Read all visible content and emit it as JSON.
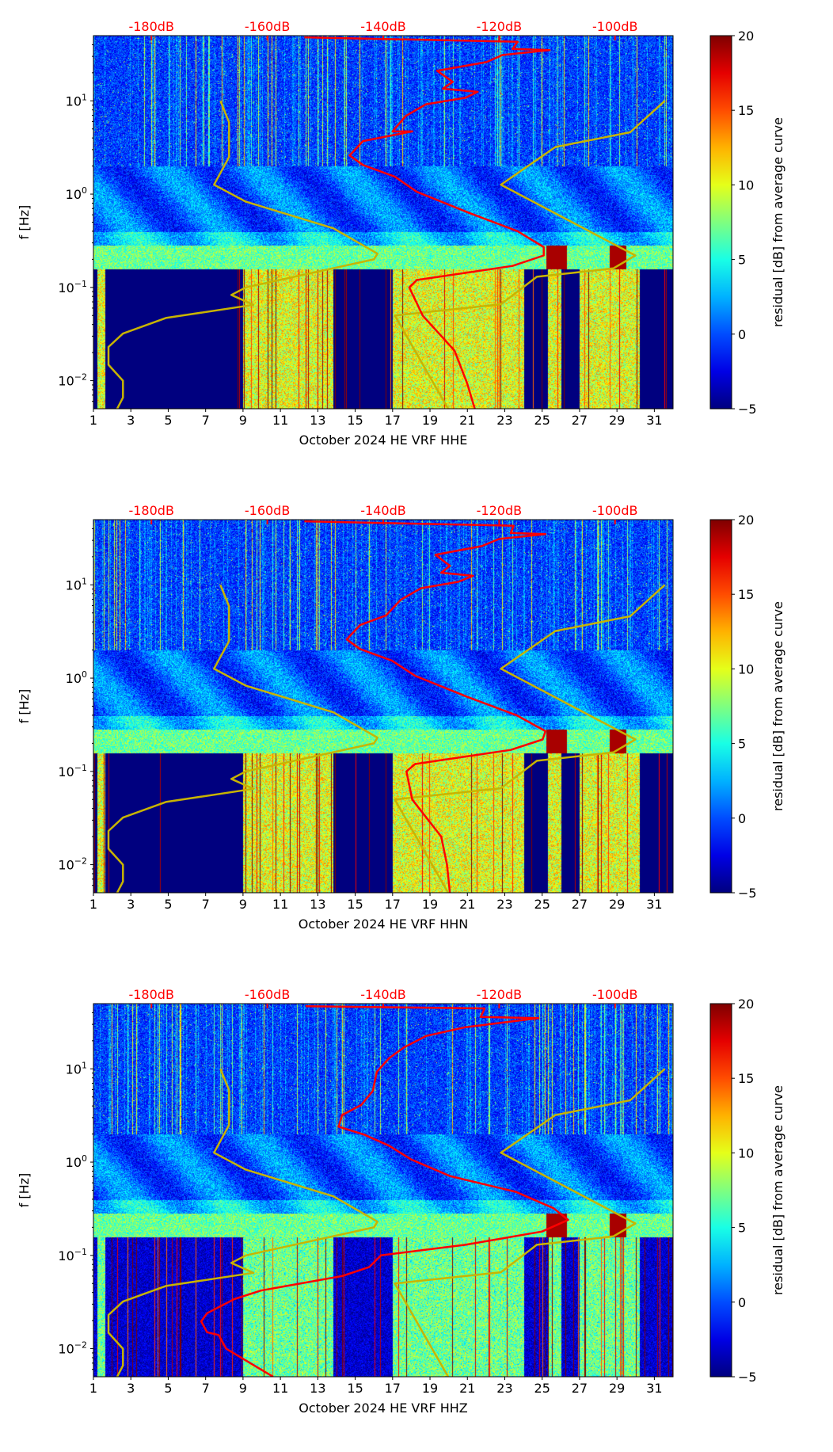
{
  "colors": {
    "psd_curve": "#ff0000",
    "noise_model": "#c8b400",
    "db_label": "#ff0000"
  },
  "colorbar": {
    "label": "residual [dB] from average curve",
    "range": [
      -5,
      20
    ],
    "ticks": [
      -5,
      0,
      5,
      10,
      15,
      20
    ],
    "colormap": "jet"
  },
  "chart_data": [
    {
      "type": "heatmap",
      "title": "",
      "xlabel": "October 2024 HE VRF  HHE",
      "ylabel": "f [Hz]",
      "xlim": [
        1,
        32
      ],
      "ylim": [
        0.005,
        50
      ],
      "yscale": "log",
      "x_ticks": [
        1,
        3,
        5,
        7,
        9,
        11,
        13,
        15,
        17,
        19,
        21,
        23,
        25,
        27,
        29,
        31
      ],
      "y_ticks": [
        {
          "value": 0.01,
          "base": "10",
          "exp": "−2"
        },
        {
          "value": 0.1,
          "base": "10",
          "exp": "−1"
        },
        {
          "value": 1,
          "base": "10",
          "exp": "0"
        },
        {
          "value": 10,
          "base": "10",
          "exp": "1"
        }
      ],
      "top_axis_labels": [
        "-180dB",
        "-160dB",
        "-140dB",
        "-120dB",
        "-100dB"
      ],
      "top_axis_values_db": [
        -180,
        -160,
        -140,
        -120,
        -100
      ],
      "psd_curve_f_db": [
        [
          48,
          -153.6
        ],
        [
          43,
          -116.8
        ],
        [
          36,
          -117.7
        ],
        [
          35,
          -111.3
        ],
        [
          31,
          -119.4
        ],
        [
          26,
          -122.2
        ],
        [
          21,
          -130.7
        ],
        [
          16,
          -128
        ],
        [
          13.5,
          -129.7
        ],
        [
          12.5,
          -123.7
        ],
        [
          10.8,
          -125.8
        ],
        [
          9.2,
          -132.6
        ],
        [
          6.9,
          -136.1
        ],
        [
          4.7,
          -138.4
        ],
        [
          4.7,
          -135
        ],
        [
          3.7,
          -143.5
        ],
        [
          2.6,
          -145.8
        ],
        [
          2.05,
          -143.5
        ],
        [
          1.54,
          -138
        ],
        [
          1.06,
          -134.2
        ],
        [
          0.63,
          -125.2
        ],
        [
          0.4,
          -116.8
        ],
        [
          0.27,
          -112.3
        ],
        [
          0.22,
          -112.3
        ],
        [
          0.17,
          -117.7
        ],
        [
          0.12,
          -134.2
        ],
        [
          0.1,
          -135.5
        ],
        [
          0.05,
          -133.2
        ],
        [
          0.021,
          -127.7
        ],
        [
          0.0093,
          -125.5
        ],
        [
          0.005,
          -124.2
        ]
      ],
      "nlnm_f_db": [
        [
          10,
          -168.1
        ],
        [
          5.9,
          -166.6
        ],
        [
          2.5,
          -166.6
        ],
        [
          1.26,
          -169.2
        ],
        [
          0.83,
          -163.7
        ],
        [
          0.43,
          -148.6
        ],
        [
          0.23,
          -141
        ],
        [
          0.2,
          -141.6
        ],
        [
          0.1,
          -163.7
        ],
        [
          0.083,
          -166.2
        ],
        [
          0.065,
          -162.4
        ],
        [
          0.047,
          -177.5
        ],
        [
          0.032,
          -184.9
        ],
        [
          0.023,
          -187.4
        ],
        [
          0.0148,
          -187.4
        ],
        [
          0.01,
          -184.9
        ],
        [
          0.0066,
          -184.9
        ],
        [
          0.005,
          -185.9
        ]
      ],
      "nhnm_f_db": [
        [
          10,
          -91.4
        ],
        [
          4.6,
          -97.4
        ],
        [
          3.2,
          -110.3
        ],
        [
          1.26,
          -119.7
        ],
        [
          0.22,
          -96.5
        ],
        [
          0.16,
          -100.3
        ],
        [
          0.13,
          -113.5
        ],
        [
          0.066,
          -119.7
        ],
        [
          0.05,
          -138
        ],
        [
          0.005,
          -128.8
        ]
      ]
    },
    {
      "type": "heatmap",
      "title": "",
      "xlabel": "October 2024 HE VRF  HHN",
      "ylabel": "f [Hz]",
      "xlim": [
        1,
        32
      ],
      "ylim": [
        0.005,
        50
      ],
      "yscale": "log",
      "x_ticks": [
        1,
        3,
        5,
        7,
        9,
        11,
        13,
        15,
        17,
        19,
        21,
        23,
        25,
        27,
        29,
        31
      ],
      "y_ticks": [
        {
          "value": 0.01,
          "base": "10",
          "exp": "−2"
        },
        {
          "value": 0.1,
          "base": "10",
          "exp": "−1"
        },
        {
          "value": 1,
          "base": "10",
          "exp": "0"
        },
        {
          "value": 10,
          "base": "10",
          "exp": "1"
        }
      ],
      "top_axis_labels": [
        "-180dB",
        "-160dB",
        "-140dB",
        "-120dB",
        "-100dB"
      ],
      "top_axis_values_db": [
        -180,
        -160,
        -140,
        -120,
        -100
      ],
      "psd_curve_f_db": [
        [
          48,
          -153.6
        ],
        [
          43,
          -117.5
        ],
        [
          36,
          -118
        ],
        [
          35,
          -112
        ],
        [
          31,
          -120
        ],
        [
          26,
          -123
        ],
        [
          21,
          -131
        ],
        [
          16,
          -128.5
        ],
        [
          13.5,
          -130
        ],
        [
          12.5,
          -124.5
        ],
        [
          10.8,
          -127
        ],
        [
          9.2,
          -133.5
        ],
        [
          6.9,
          -137
        ],
        [
          4.7,
          -139.5
        ],
        [
          3.7,
          -144
        ],
        [
          2.6,
          -146.3
        ],
        [
          2.05,
          -144
        ],
        [
          1.54,
          -138.5
        ],
        [
          1.06,
          -134.5
        ],
        [
          0.63,
          -125.5
        ],
        [
          0.4,
          -117
        ],
        [
          0.27,
          -112
        ],
        [
          0.22,
          -112.5
        ],
        [
          0.17,
          -118
        ],
        [
          0.12,
          -134.5
        ],
        [
          0.1,
          -136
        ],
        [
          0.05,
          -135
        ],
        [
          0.02,
          -130
        ],
        [
          0.01,
          -129
        ],
        [
          0.005,
          -128.5
        ]
      ],
      "nlnm_f_db": [
        [
          10,
          -168.1
        ],
        [
          5.9,
          -166.6
        ],
        [
          2.5,
          -166.6
        ],
        [
          1.26,
          -169.2
        ],
        [
          0.83,
          -163.7
        ],
        [
          0.43,
          -148.6
        ],
        [
          0.23,
          -141
        ],
        [
          0.2,
          -141.6
        ],
        [
          0.1,
          -163.7
        ],
        [
          0.083,
          -166.2
        ],
        [
          0.065,
          -162.4
        ],
        [
          0.047,
          -177.5
        ],
        [
          0.032,
          -184.9
        ],
        [
          0.023,
          -187.4
        ],
        [
          0.0148,
          -187.4
        ],
        [
          0.01,
          -184.9
        ],
        [
          0.0066,
          -184.9
        ],
        [
          0.005,
          -185.9
        ]
      ],
      "nhnm_f_db": [
        [
          10,
          -91.4
        ],
        [
          4.6,
          -97.4
        ],
        [
          3.2,
          -110.3
        ],
        [
          1.26,
          -119.7
        ],
        [
          0.22,
          -96.5
        ],
        [
          0.16,
          -100.3
        ],
        [
          0.13,
          -113.5
        ],
        [
          0.066,
          -119.7
        ],
        [
          0.05,
          -138
        ],
        [
          0.005,
          -128.8
        ]
      ]
    },
    {
      "type": "heatmap",
      "title": "",
      "xlabel": "October 2024 HE VRF  HHZ",
      "ylabel": "f [Hz]",
      "xlim": [
        1,
        32
      ],
      "ylim": [
        0.005,
        50
      ],
      "yscale": "log",
      "x_ticks": [
        1,
        3,
        5,
        7,
        9,
        11,
        13,
        15,
        17,
        19,
        21,
        23,
        25,
        27,
        29,
        31
      ],
      "y_ticks": [
        {
          "value": 0.01,
          "base": "10",
          "exp": "−2"
        },
        {
          "value": 0.1,
          "base": "10",
          "exp": "−1"
        },
        {
          "value": 1,
          "base": "10",
          "exp": "0"
        },
        {
          "value": 10,
          "base": "10",
          "exp": "1"
        }
      ],
      "top_axis_labels": [
        "-180dB",
        "-160dB",
        "-140dB",
        "-120dB",
        "-100dB"
      ],
      "top_axis_values_db": [
        -180,
        -160,
        -140,
        -120,
        -100
      ],
      "psd_curve_f_db": [
        [
          47,
          -153.4
        ],
        [
          44.5,
          -122.5
        ],
        [
          36,
          -123.2
        ],
        [
          35,
          -113.2
        ],
        [
          28,
          -125.8
        ],
        [
          22.5,
          -132.6
        ],
        [
          17,
          -136.4
        ],
        [
          13,
          -139
        ],
        [
          9.3,
          -141.1
        ],
        [
          5.8,
          -141.8
        ],
        [
          4.1,
          -143.8
        ],
        [
          3.2,
          -147.1
        ],
        [
          2.4,
          -147.7
        ],
        [
          1.96,
          -143.2
        ],
        [
          1.5,
          -139
        ],
        [
          1.07,
          -135.2
        ],
        [
          0.71,
          -128.5
        ],
        [
          0.48,
          -117.1
        ],
        [
          0.32,
          -110.6
        ],
        [
          0.24,
          -108.1
        ],
        [
          0.18,
          -112.6
        ],
        [
          0.13,
          -125.8
        ],
        [
          0.1,
          -140.4
        ],
        [
          0.075,
          -142.4
        ],
        [
          0.06,
          -147.1
        ],
        [
          0.042,
          -161.1
        ],
        [
          0.034,
          -165.7
        ],
        [
          0.024,
          -170.4
        ],
        [
          0.0196,
          -171.4
        ],
        [
          0.015,
          -170.4
        ],
        [
          0.014,
          -168.4
        ],
        [
          0.01,
          -167.1
        ],
        [
          0.005,
          -159
        ]
      ],
      "nlnm_f_db": [
        [
          10,
          -168.1
        ],
        [
          5.9,
          -166.6
        ],
        [
          2.5,
          -166.6
        ],
        [
          1.26,
          -169.2
        ],
        [
          0.83,
          -163.7
        ],
        [
          0.43,
          -148.6
        ],
        [
          0.23,
          -141
        ],
        [
          0.2,
          -141.6
        ],
        [
          0.1,
          -163.7
        ],
        [
          0.083,
          -166.2
        ],
        [
          0.065,
          -162.4
        ],
        [
          0.047,
          -177.5
        ],
        [
          0.032,
          -184.9
        ],
        [
          0.023,
          -187.4
        ],
        [
          0.0148,
          -187.4
        ],
        [
          0.01,
          -184.9
        ],
        [
          0.0066,
          -184.9
        ],
        [
          0.005,
          -185.9
        ]
      ],
      "nhnm_f_db": [
        [
          10,
          -91.4
        ],
        [
          4.6,
          -97.4
        ],
        [
          3.2,
          -110.3
        ],
        [
          1.26,
          -119.7
        ],
        [
          0.22,
          -96.5
        ],
        [
          0.16,
          -100.3
        ],
        [
          0.13,
          -113.5
        ],
        [
          0.066,
          -119.7
        ],
        [
          0.05,
          -138
        ],
        [
          0.005,
          -128.8
        ]
      ]
    }
  ]
}
